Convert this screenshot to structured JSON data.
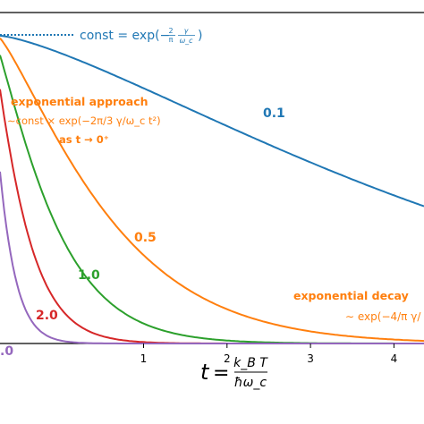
{
  "chart_data": {
    "type": "line",
    "xlabel": "",
    "ylabel": "",
    "xlim": [
      -0.72,
      4.36
    ],
    "ylim": [
      0,
      1.0
    ],
    "xticks": [
      1,
      2,
      3,
      4
    ],
    "xtick_labels": [
      "1",
      "2",
      "3",
      "4"
    ],
    "grid": false,
    "series": [
      {
        "name": "0.1",
        "color": "#1f77b4",
        "values": []
      },
      {
        "name": "0.5",
        "color": "#ff7f0e",
        "values": []
      },
      {
        "name": "1.0",
        "color": "#2ca02c",
        "values": []
      },
      {
        "name": "2.0",
        "color": "#d62728",
        "values": []
      },
      {
        "name": ".0",
        "color": "#9467bd",
        "values": []
      }
    ],
    "reference_line": {
      "label": "const = exp(−2/π γ/ω_c)",
      "color": "#1f77b4",
      "style": "dotted",
      "y": 0.93
    }
  },
  "annotations": {
    "const_label": "const = exp(−",
    "const_frac_num": "2",
    "const_frac_den": "π",
    "const_gamma_num": "γ",
    "const_gamma_den": "ω_c",
    "const_close": ")",
    "approach_title": "exponential approach",
    "approach_formula": "∼const × exp(−2π/3 γ/ω_c t²)",
    "approach_limit": "as t → 0⁺",
    "decay_title": "exponential decay",
    "decay_formula": "∼ exp(−4/π γ/",
    "label_01": "0.1",
    "label_05": "0.5",
    "label_10": "1.0",
    "label_20": "2.0",
    "label_40": ".0"
  },
  "xaxis": {
    "t_symbol": "t",
    "equals": "=",
    "frac_num": "k_B T",
    "frac_den": "ħω_c"
  },
  "colors": {
    "blue": "#1f77b4",
    "orange": "#ff7f0e",
    "green": "#2ca02c",
    "red": "#d62728",
    "purple": "#9467bd"
  }
}
